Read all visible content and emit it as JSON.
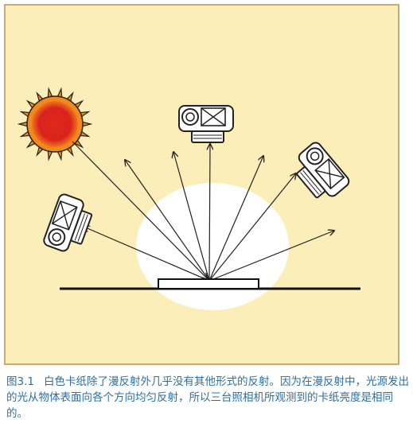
{
  "figure": {
    "number": "图3.1",
    "caption": "白色卡纸除了漫反射外几乎没有其他形式的反射。因为在漫反射中，光源发出的光从物体表面向各个方向均匀反射，所以三台照相机所观测到的卡纸亮度是相同的。"
  },
  "colors": {
    "background": "#fbeeb8",
    "border": "#c9a96e",
    "sun_outer": "#f08a1c",
    "sun_inner": "#d8241c",
    "caption_text": "#2d6fa0",
    "spot": "#ffffff"
  },
  "icons": [
    "sun-icon",
    "camera-icon"
  ]
}
